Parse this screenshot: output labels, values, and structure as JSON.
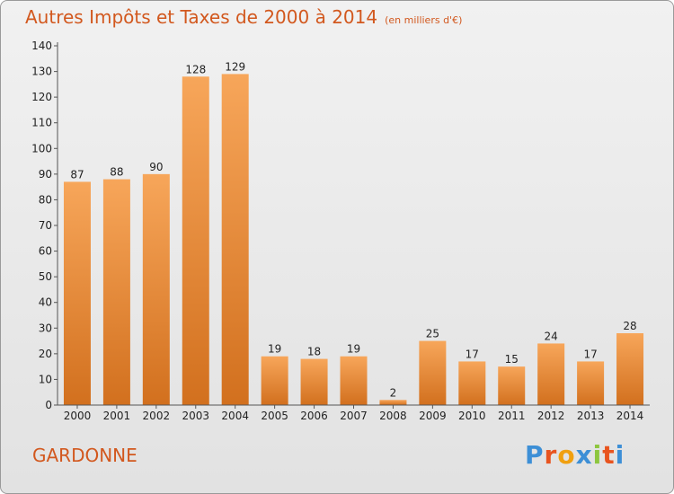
{
  "header": {
    "title": "Autres Impôts et Taxes de 2000 à 2014",
    "unit": "(en milliers d'€)"
  },
  "footer": {
    "commune": "GARDONNE",
    "logo_letters": [
      "P",
      "r",
      "o",
      "x",
      "i",
      "t",
      "i"
    ],
    "logo_colors": [
      "#3d8fd6",
      "#e8541f",
      "#f0a010",
      "#3d8fd6",
      "#8dc63f",
      "#e8541f",
      "#3d8fd6"
    ]
  },
  "chart_data": {
    "type": "bar",
    "title": "Autres Impôts et Taxes de 2000 à 2014",
    "subtitle": "(en milliers d'€)",
    "xlabel": "",
    "ylabel": "",
    "categories": [
      "2000",
      "2001",
      "2002",
      "2003",
      "2004",
      "2005",
      "2006",
      "2007",
      "2008",
      "2009",
      "2010",
      "2011",
      "2012",
      "2013",
      "2014"
    ],
    "values": [
      87,
      88,
      90,
      128,
      129,
      19,
      18,
      19,
      2,
      25,
      17,
      15,
      24,
      17,
      28
    ],
    "ylim": [
      0,
      140
    ],
    "yticks": [
      0,
      10,
      20,
      30,
      40,
      50,
      60,
      70,
      80,
      90,
      100,
      110,
      120,
      130,
      140
    ],
    "grid": false,
    "bar_color_top": "#f7a65a",
    "bar_color_bottom": "#d2701e"
  }
}
